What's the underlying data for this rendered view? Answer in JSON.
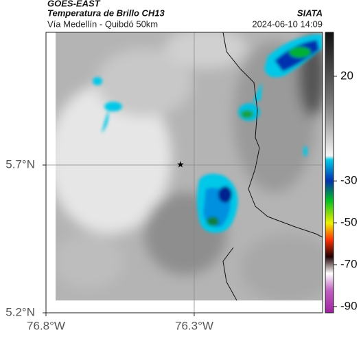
{
  "header": {
    "title": "GOES-EAST",
    "subtitle": "Temperatura de Brillo CH13",
    "route": "Vía Medellín - Quibdó 50km",
    "source": "SIATA",
    "datetime": "2024-06-10 14:09"
  },
  "map": {
    "xlim": [
      -76.8,
      -75.867
    ],
    "ylim": [
      5.2,
      6.149
    ],
    "xticks": [
      {
        "value": -76.8,
        "label": "76.8°W"
      },
      {
        "value": -76.3,
        "label": "76.3°W"
      }
    ],
    "yticks": [
      {
        "value": 5.7,
        "label": "5.7°N"
      },
      {
        "value": 5.2,
        "label": "5.2°N"
      }
    ]
  },
  "colorbar": {
    "range": [
      -93,
      41
    ],
    "ticks": [
      20,
      -30,
      -50,
      -70,
      -90
    ]
  }
}
